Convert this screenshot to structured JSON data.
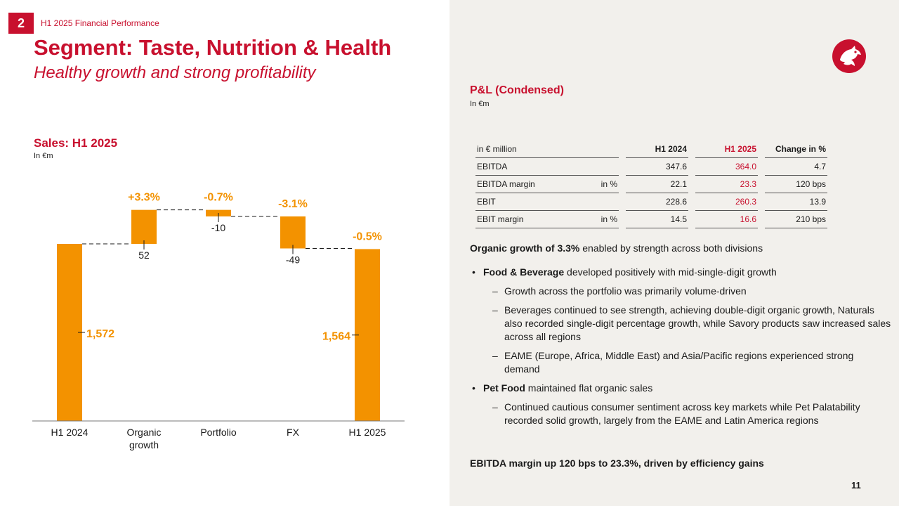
{
  "header": {
    "section_number": "2",
    "breadcrumb": "H1 2025 Financial Performance",
    "title": "Segment: Taste, Nutrition & Health",
    "subtitle": "Healthy growth and strong profitability"
  },
  "chart_data": {
    "type": "bar",
    "subtype": "waterfall",
    "title": "Sales: H1 2025",
    "unit": "In €m",
    "categories": [
      "H1 2024",
      "Organic\ngrowth",
      "Portfolio",
      "FX",
      "H1 2025"
    ],
    "values": [
      1572,
      52,
      -10,
      -49,
      1564
    ],
    "value_labels": [
      "1,572",
      "52",
      "-10",
      "-49",
      "1,564"
    ],
    "percent_labels": [
      "",
      "+3.3%",
      "-0.7%",
      "-3.1%",
      "-0.5%"
    ],
    "is_total": [
      true,
      false,
      false,
      false,
      true
    ],
    "axis_break": true,
    "grid": false,
    "legend": "none",
    "colors": {
      "bar": "#f39200",
      "text": "#1a1a1a"
    }
  },
  "pl": {
    "title": "P&L (Condensed)",
    "unit": "In €m",
    "columns": [
      "in € million",
      "H1 2024",
      "H1 2025",
      "Change in %"
    ],
    "rows": [
      {
        "label": "EBITDA",
        "unit": "",
        "h1_2024": "347.6",
        "h1_2025": "364.0",
        "change": "4.7"
      },
      {
        "label": "EBITDA margin",
        "unit": "in %",
        "h1_2024": "22.1",
        "h1_2025": "23.3",
        "change": "120 bps"
      },
      {
        "label": "EBIT",
        "unit": "",
        "h1_2024": "228.6",
        "h1_2025": "260.3",
        "change": "13.9"
      },
      {
        "label": "EBIT margin",
        "unit": "in %",
        "h1_2024": "14.5",
        "h1_2025": "16.6",
        "change": "210 bps"
      }
    ]
  },
  "commentary": {
    "lead_bold": "Organic growth of 3.3%",
    "lead_rest": " enabled by strength across both divisions",
    "fb_bold": "Food & Beverage",
    "fb_rest": " developed positively with mid-single-digit growth",
    "fb_subs": [
      "Growth across the portfolio was primarily volume-driven",
      "Beverages continued to see strength, achieving double-digit organic growth, Naturals also recorded single-digit percentage growth, while Savory products saw increased sales across all regions",
      "EAME (Europe, Africa, Middle East) and Asia/Pacific regions experienced strong demand"
    ],
    "pet_bold": "Pet Food",
    "pet_rest": " maintained flat organic sales",
    "pet_subs": [
      "Continued cautious consumer sentiment across key markets while Pet Palatability recorded solid growth, largely from the EAME and Latin America regions"
    ],
    "conclusion": "EBITDA margin up 120 bps to 23.3%, driven by efficiency gains"
  },
  "footer": {
    "page_number": "11"
  },
  "colors": {
    "brand_red": "#c8102e",
    "accent_orange": "#f39200",
    "panel_bg": "#f2f0ec"
  },
  "icons": {
    "logo": "dragon-logo-icon"
  }
}
